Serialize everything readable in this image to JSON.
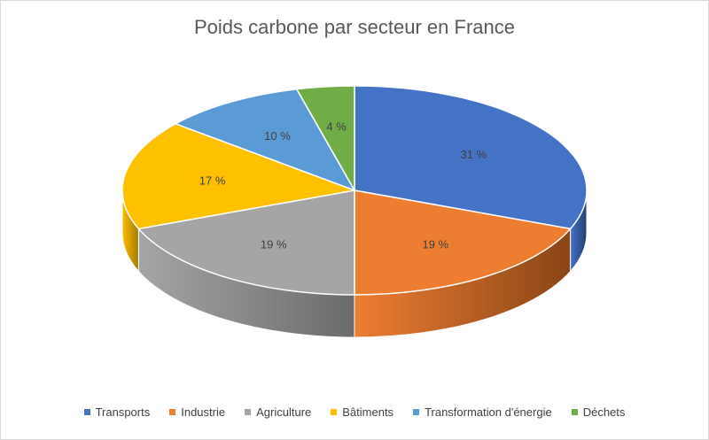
{
  "chart_data": {
    "type": "pie",
    "title": "Poids carbone par secteur en France",
    "slices": [
      {
        "label": "Transports",
        "value": 31,
        "display": "31 %",
        "color": "#4472C4",
        "side": "#243F70"
      },
      {
        "label": "Industrie",
        "value": 19,
        "display": "19 %",
        "color": "#ED7D31",
        "side": "#8A4517"
      },
      {
        "label": "Agriculture",
        "value": 19,
        "display": "19 %",
        "color": "#A5A5A5",
        "side": "#6B6B6B"
      },
      {
        "label": "Bâtiments",
        "value": 17,
        "display": "17 %",
        "color": "#FFC000",
        "side": "#A17A00"
      },
      {
        "label": "Transformation d'énergie",
        "value": 10,
        "display": "10 %",
        "color": "#5B9BD5",
        "side": "#2F5F8A"
      },
      {
        "label": "Déchets",
        "value": 4,
        "display": "4 %",
        "color": "#70AD47",
        "side": "#3F6A24"
      }
    ],
    "legend_position": "bottom",
    "style": "3d-pie"
  }
}
